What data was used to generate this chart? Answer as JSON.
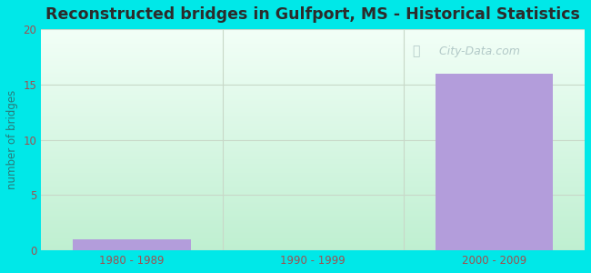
{
  "categories": [
    "1980 - 1989",
    "1990 - 1999",
    "2000 - 2009"
  ],
  "values": [
    1,
    0,
    16
  ],
  "bar_color": "#b39ddb",
  "bar_edge_color": "#9b84cc",
  "title": "Reconstructed bridges in Gulfport, MS - Historical Statistics",
  "ylabel": "number of bridges",
  "ylim": [
    0,
    20
  ],
  "yticks": [
    0,
    5,
    10,
    15,
    20
  ],
  "background_color": "#00e8e8",
  "title_color": "#2c2c2c",
  "title_fontsize": 12.5,
  "label_color": "#2a7a7a",
  "tick_color": "#a05050",
  "grid_color": "#c8d8c8",
  "watermark_text": "City-Data.com",
  "watermark_color": "#a8c0c0",
  "plot_bg_top": "#eaf8f0",
  "plot_bg_bottom": "#c8ecd8"
}
